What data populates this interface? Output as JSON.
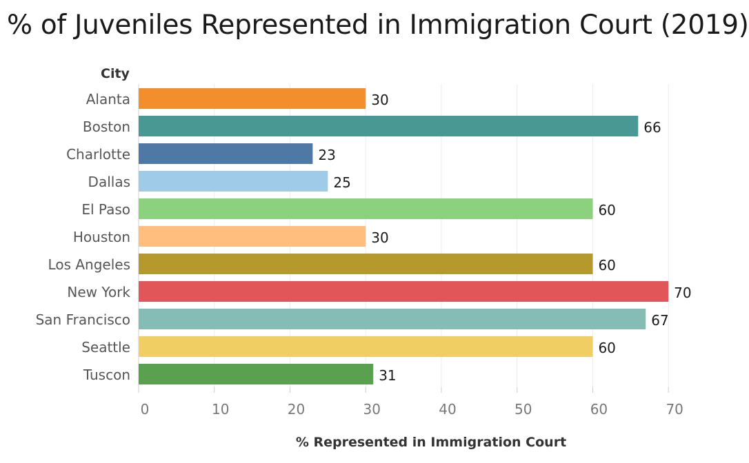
{
  "title": "% of Juveniles Represented in Immigration Court (2019)",
  "chart_data": {
    "type": "bar",
    "orientation": "horizontal",
    "title": "% of Juveniles Represented in Immigration Court (2019)",
    "ylabel": "City",
    "xlabel": "% Represented in Immigration Court",
    "categories": [
      "Alanta",
      "Boston",
      "Charlotte",
      "Dallas",
      "El Paso",
      "Houston",
      "Los Angeles",
      "New York",
      "San Francisco",
      "Seattle",
      "Tuscon"
    ],
    "values": [
      30,
      66,
      23,
      25,
      60,
      30,
      60,
      70,
      67,
      60,
      31
    ],
    "colors": [
      "#f28e2b",
      "#499894",
      "#4e79a7",
      "#a0cbe8",
      "#8cd17d",
      "#ffbe7d",
      "#b6992d",
      "#e15759",
      "#86bcb6",
      "#f1ce63",
      "#59a14f"
    ],
    "xlim": [
      0,
      77
    ],
    "xticks": [
      0,
      10,
      20,
      30,
      40,
      50,
      60,
      70
    ],
    "grid": true,
    "data_labels": true
  }
}
